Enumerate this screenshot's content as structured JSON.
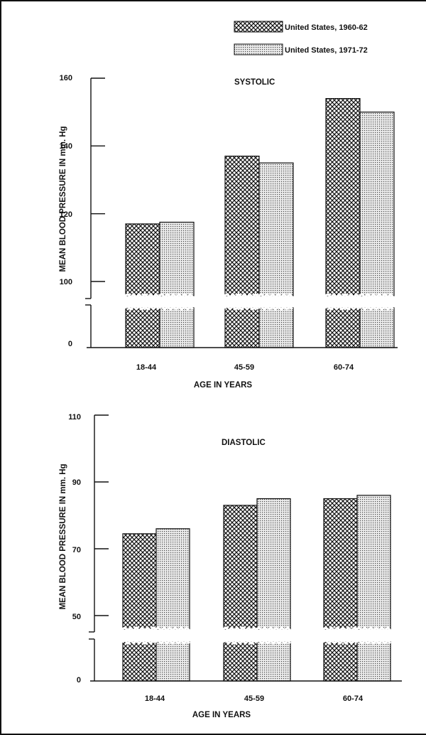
{
  "legend": [
    {
      "label": "United States, 1960-62",
      "pattern": "crosshatch"
    },
    {
      "label": "United States, 1971-72",
      "pattern": "dotted"
    }
  ],
  "chart_data": [
    {
      "type": "bar",
      "title": "SYSTOLIC",
      "xlabel": "AGE IN YEARS",
      "ylabel": "MEAN BLOOD PRESSURE IN mm. Hg",
      "categories": [
        "18-44",
        "45-59",
        "60-74"
      ],
      "series": [
        {
          "name": "United States, 1960-62",
          "values": [
            117,
            137,
            154
          ]
        },
        {
          "name": "United States, 1971-72",
          "values": [
            117.5,
            135,
            150
          ]
        }
      ],
      "ylim": [
        100,
        160
      ],
      "yticks": [
        "160",
        "140",
        "120",
        "100",
        "0"
      ],
      "axis_break": true,
      "grid": false
    },
    {
      "type": "bar",
      "title": "DIASTOLIC",
      "xlabel": "AGE IN YEARS",
      "ylabel": "MEAN BLOOD PRESSURE IN mm. Hg",
      "categories": [
        "18-44",
        "45-59",
        "60-74"
      ],
      "series": [
        {
          "name": "United States, 1960-62",
          "values": [
            74.5,
            83,
            85
          ]
        },
        {
          "name": "United States, 1971-72",
          "values": [
            76,
            85,
            86
          ]
        }
      ],
      "ylim": [
        50,
        110
      ],
      "yticks": [
        "110",
        "90",
        "70",
        "50",
        "0"
      ],
      "axis_break": true,
      "grid": false
    }
  ]
}
